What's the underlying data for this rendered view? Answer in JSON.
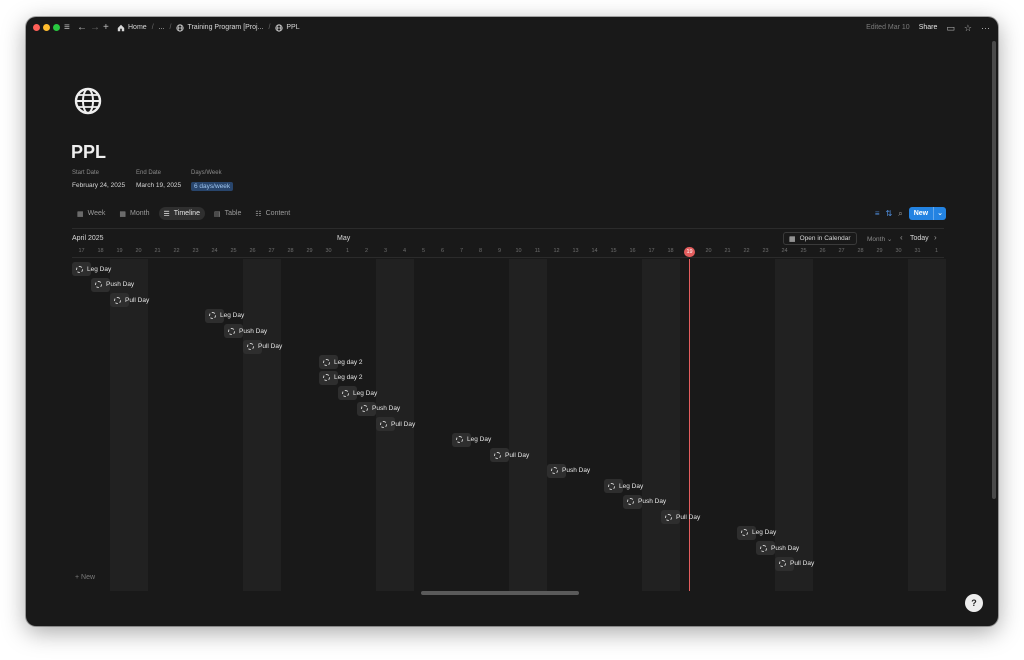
{
  "titlebar": {
    "crumbs": [
      {
        "label": "Home",
        "icon": "home-icon"
      },
      {
        "label": "..."
      },
      {
        "label": "Training Program [Proj...",
        "icon": "globe-icon"
      },
      {
        "label": "PPL",
        "icon": "globe-icon"
      }
    ],
    "edited": "Edited Mar 10",
    "share": "Share"
  },
  "page": {
    "icon": "globe-icon",
    "title": "PPL",
    "properties": [
      {
        "label": "Start Date",
        "value": "February 24, 2025"
      },
      {
        "label": "End Date",
        "value": "March 19, 2025"
      },
      {
        "label": "Days/Week",
        "value": "6 days/week"
      }
    ]
  },
  "views": {
    "tabs": [
      {
        "label": "Week",
        "icon": "calendar-icon"
      },
      {
        "label": "Month",
        "icon": "calendar-icon"
      },
      {
        "label": "Timeline",
        "icon": "timeline-icon",
        "active": true
      },
      {
        "label": "Table",
        "icon": "table-icon"
      },
      {
        "label": "Content",
        "icon": "list-icon"
      }
    ],
    "new_label": "New"
  },
  "timeline": {
    "month_labels": [
      "April 2025",
      "May"
    ],
    "open_calendar": "Open in Calendar",
    "zoom": "Month",
    "today": "Today",
    "today_day": "19",
    "days": [
      "17",
      "18",
      "19",
      "20",
      "21",
      "22",
      "23",
      "24",
      "25",
      "26",
      "27",
      "28",
      "29",
      "30",
      "1",
      "2",
      "3",
      "4",
      "5",
      "6",
      "7",
      "8",
      "9",
      "10",
      "11",
      "12",
      "13",
      "14",
      "15",
      "16",
      "17",
      "18",
      "19",
      "20",
      "21",
      "22",
      "23",
      "24",
      "25",
      "26",
      "27",
      "28",
      "29",
      "30",
      "31",
      "1"
    ],
    "items": [
      {
        "label": "Leg Day",
        "day_index": 0
      },
      {
        "label": "Push Day",
        "day_index": 1
      },
      {
        "label": "Pull Day",
        "day_index": 2
      },
      {
        "label": "Leg Day",
        "day_index": 7
      },
      {
        "label": "Push Day",
        "day_index": 8
      },
      {
        "label": "Pull Day",
        "day_index": 9
      },
      {
        "label": "Leg day 2",
        "day_index": 13
      },
      {
        "label": "Leg day 2",
        "day_index": 13
      },
      {
        "label": "Leg Day",
        "day_index": 14
      },
      {
        "label": "Push Day",
        "day_index": 15
      },
      {
        "label": "Pull Day",
        "day_index": 16
      },
      {
        "label": "Leg Day",
        "day_index": 20
      },
      {
        "label": "Pull Day",
        "day_index": 22
      },
      {
        "label": "Push Day",
        "day_index": 25
      },
      {
        "label": "Leg Day",
        "day_index": 28
      },
      {
        "label": "Push Day",
        "day_index": 29
      },
      {
        "label": "Pull Day",
        "day_index": 31
      },
      {
        "label": "Leg Day",
        "day_index": 35
      },
      {
        "label": "Push Day",
        "day_index": 36
      },
      {
        "label": "Pull Day",
        "day_index": 37
      }
    ],
    "add_new": "+ New"
  },
  "colors": {
    "background": "#191919",
    "accent": "#2383e2",
    "today": "#e35d5d",
    "pill": "#28456c"
  }
}
